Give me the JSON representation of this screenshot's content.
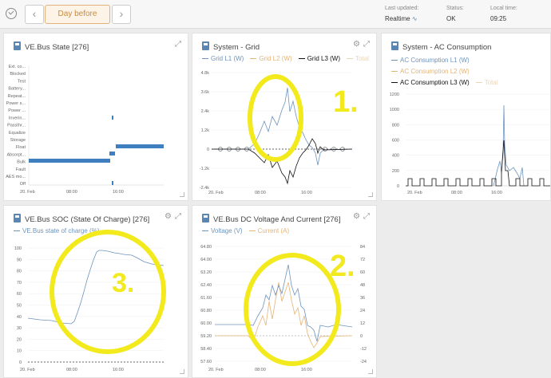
{
  "header": {
    "back_label": "‹",
    "day_label": "Day before",
    "forward_label": "›",
    "last_updated_label": "Last updated:",
    "last_updated_value": "Realtime",
    "status_label": "Status:",
    "status_value": "OK",
    "local_time_label": "Local time:",
    "local_time_value": "09:25"
  },
  "panels": {
    "vebus_state": {
      "title": "VE.Bus State [276]",
      "states": [
        "Ext. co...",
        "Blocked",
        "Test",
        "Battery...",
        "Repeat...",
        "Power s...",
        "Power ...",
        "Inverin...",
        "Passthr...",
        "Equalize",
        "Storage",
        "Float",
        "Absorpt...",
        "Bulk",
        "Fault",
        "AES mo...",
        "Off"
      ],
      "x_ticks": [
        "20. Feb",
        "08:00",
        "16:00"
      ]
    },
    "system_grid": {
      "title": "System - Grid",
      "legend": [
        "Grid L1 (W)",
        "Grid L2 (W)",
        "Grid L3 (W)",
        "Total"
      ],
      "y_ticks": [
        "4.8k",
        "3.6k",
        "2.4k",
        "1.2k",
        "0",
        "-1.2k",
        "-2.4k"
      ],
      "x_ticks": [
        "20. Feb",
        "08:00",
        "16:00"
      ],
      "annotation": "1."
    },
    "ac_consumption": {
      "title": "System - AC Consumption",
      "legend": [
        "AC Consumption L1 (W)",
        "AC Consumption L2 (W)",
        "AC Consumption L3 (W)",
        "Total"
      ],
      "y_ticks": [
        "1200",
        "1000",
        "800",
        "600",
        "400",
        "200",
        "0"
      ],
      "x_ticks": [
        "20. Feb",
        "08:00",
        "16:00"
      ]
    },
    "soc": {
      "title": "VE.Bus SOC (State Of Charge) [276]",
      "legend": [
        "VE.Bus state of charge (%)"
      ],
      "y_ticks": [
        "100",
        "90",
        "80",
        "70",
        "60",
        "50",
        "40",
        "30",
        "20",
        "10",
        "0"
      ],
      "x_ticks": [
        "20. Feb",
        "08:00",
        "16:00"
      ],
      "annotation": "3."
    },
    "dc": {
      "title": "VE.Bus DC Voltage And Current [276]",
      "legend": [
        "Voltage (V)",
        "Current (A)"
      ],
      "y_ticks_left": [
        "64.80",
        "64.00",
        "63.20",
        "62.40",
        "61.60",
        "60.80",
        "60.00",
        "59.20",
        "58.40",
        "57.60"
      ],
      "y_ticks_right": [
        "84",
        "72",
        "60",
        "48",
        "36",
        "24",
        "12",
        "0",
        "-12",
        "-24"
      ],
      "x_ticks": [
        "20. Feb",
        "08:00",
        "16:00"
      ],
      "annotation": "2."
    }
  },
  "colors": {
    "l1": "#6e94bd",
    "l2": "#e5b478",
    "l3": "#111111",
    "total": "#e8d6b8",
    "bar": "#3f7fbf",
    "highlight": "#f2ea1d"
  }
}
